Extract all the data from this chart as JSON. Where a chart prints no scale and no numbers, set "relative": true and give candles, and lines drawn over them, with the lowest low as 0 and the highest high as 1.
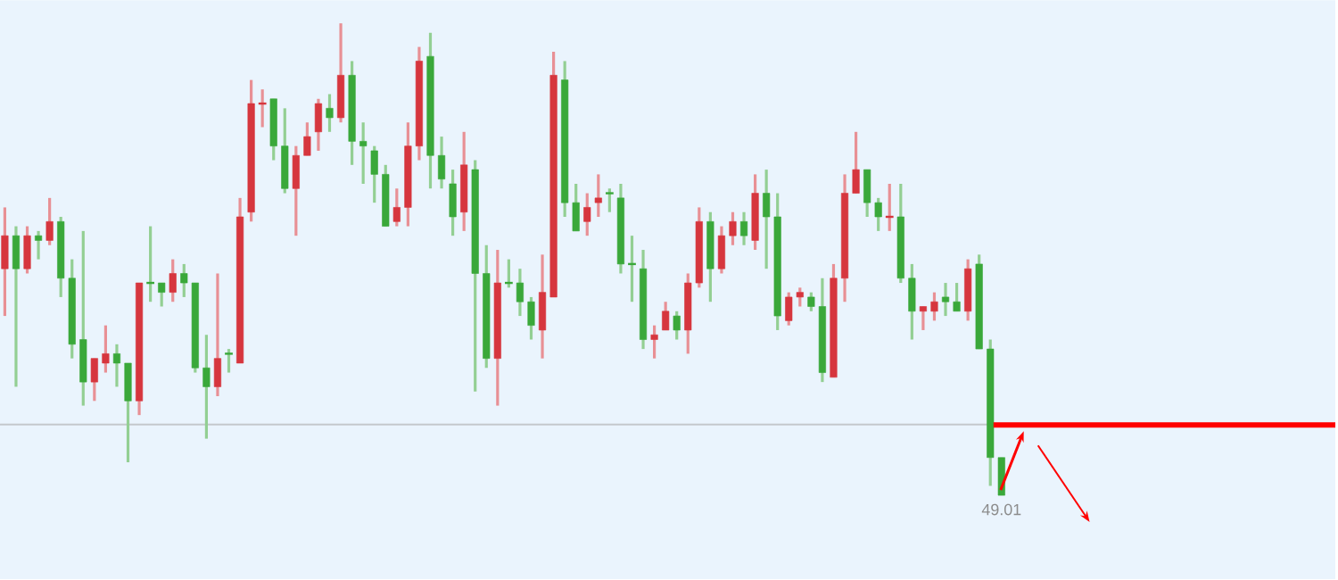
{
  "chart_data": {
    "type": "candlestick",
    "relative": true,
    "categories": [
      null,
      null,
      null,
      null,
      null,
      null,
      null,
      null,
      null,
      null,
      null,
      null,
      null,
      null,
      null,
      null,
      null,
      null,
      null,
      null,
      null,
      null,
      null,
      null,
      null,
      null,
      null,
      null,
      null,
      null,
      null,
      null,
      null,
      null,
      null,
      null,
      null,
      null,
      null,
      null,
      null,
      null,
      null,
      null,
      null,
      null,
      null,
      null,
      null,
      null,
      null,
      null,
      null,
      null,
      null,
      null,
      null,
      null,
      null,
      null,
      null,
      null,
      null,
      null,
      null,
      null,
      null,
      null,
      null,
      null,
      null,
      null,
      null,
      null,
      null,
      null,
      null,
      null,
      null,
      null,
      null,
      null,
      null,
      null,
      null,
      null,
      null,
      null,
      null,
      "49.01"
    ],
    "ohlc": [
      [
        0.48,
        0.61,
        0.38,
        0.55
      ],
      [
        0.55,
        0.57,
        0.23,
        0.48
      ],
      [
        0.48,
        0.57,
        0.47,
        0.55
      ],
      [
        0.55,
        0.56,
        0.5,
        0.54
      ],
      [
        0.54,
        0.63,
        0.53,
        0.58
      ],
      [
        0.58,
        0.59,
        0.42,
        0.46
      ],
      [
        0.46,
        0.5,
        0.29,
        0.32
      ],
      [
        0.33,
        0.56,
        0.19,
        0.24
      ],
      [
        0.24,
        0.29,
        0.2,
        0.29
      ],
      [
        0.28,
        0.36,
        0.26,
        0.3
      ],
      [
        0.3,
        0.32,
        0.23,
        0.28
      ],
      [
        0.28,
        0.28,
        0.07,
        0.2
      ],
      [
        0.2,
        0.45,
        0.17,
        0.45
      ],
      [
        0.45,
        0.57,
        0.41,
        0.45
      ],
      [
        0.45,
        0.45,
        0.4,
        0.43
      ],
      [
        0.43,
        0.5,
        0.41,
        0.47
      ],
      [
        0.47,
        0.49,
        0.42,
        0.45
      ],
      [
        0.45,
        0.45,
        0.26,
        0.27
      ],
      [
        0.27,
        0.34,
        0.12,
        0.23
      ],
      [
        0.23,
        0.47,
        0.21,
        0.29
      ],
      [
        0.3,
        0.31,
        0.26,
        0.3
      ],
      [
        0.28,
        0.63,
        0.28,
        0.59
      ],
      [
        0.6,
        0.88,
        0.58,
        0.83
      ],
      [
        0.83,
        0.86,
        0.78,
        0.83
      ],
      [
        0.84,
        0.84,
        0.71,
        0.74
      ],
      [
        0.74,
        0.82,
        0.64,
        0.65
      ],
      [
        0.65,
        0.74,
        0.55,
        0.72
      ],
      [
        0.72,
        0.79,
        0.72,
        0.76
      ],
      [
        0.77,
        0.84,
        0.73,
        0.83
      ],
      [
        0.82,
        0.85,
        0.77,
        0.8
      ],
      [
        0.8,
        1.0,
        0.79,
        0.89
      ],
      [
        0.89,
        0.92,
        0.7,
        0.75
      ],
      [
        0.75,
        0.79,
        0.66,
        0.74
      ],
      [
        0.73,
        0.74,
        0.62,
        0.68
      ],
      [
        0.68,
        0.7,
        0.57,
        0.57
      ],
      [
        0.58,
        0.65,
        0.57,
        0.61
      ],
      [
        0.61,
        0.79,
        0.57,
        0.74
      ],
      [
        0.74,
        0.95,
        0.71,
        0.92
      ],
      [
        0.93,
        0.98,
        0.65,
        0.72
      ],
      [
        0.72,
        0.76,
        0.65,
        0.67
      ],
      [
        0.66,
        0.69,
        0.55,
        0.59
      ],
      [
        0.6,
        0.77,
        0.56,
        0.7
      ],
      [
        0.69,
        0.71,
        0.22,
        0.47
      ],
      [
        0.47,
        0.53,
        0.27,
        0.29
      ],
      [
        0.29,
        0.52,
        0.19,
        0.45
      ],
      [
        0.45,
        0.5,
        0.44,
        0.45
      ],
      [
        0.45,
        0.48,
        0.38,
        0.41
      ],
      [
        0.41,
        0.42,
        0.33,
        0.36
      ],
      [
        0.35,
        0.51,
        0.29,
        0.43
      ],
      [
        0.42,
        0.94,
        0.42,
        0.89
      ],
      [
        0.88,
        0.92,
        0.59,
        0.62
      ],
      [
        0.62,
        0.66,
        0.56,
        0.56
      ],
      [
        0.58,
        0.64,
        0.55,
        0.61
      ],
      [
        0.62,
        0.68,
        0.59,
        0.63
      ],
      [
        0.64,
        0.65,
        0.6,
        0.64
      ],
      [
        0.63,
        0.66,
        0.47,
        0.49
      ],
      [
        0.49,
        0.55,
        0.41,
        0.49
      ],
      [
        0.48,
        0.52,
        0.31,
        0.33
      ],
      [
        0.33,
        0.36,
        0.29,
        0.34
      ],
      [
        0.35,
        0.41,
        0.35,
        0.39
      ],
      [
        0.38,
        0.39,
        0.33,
        0.35
      ],
      [
        0.35,
        0.47,
        0.3,
        0.45
      ],
      [
        0.45,
        0.61,
        0.44,
        0.58
      ],
      [
        0.58,
        0.6,
        0.41,
        0.48
      ],
      [
        0.48,
        0.57,
        0.47,
        0.55
      ],
      [
        0.55,
        0.6,
        0.53,
        0.58
      ],
      [
        0.58,
        0.6,
        0.53,
        0.55
      ],
      [
        0.54,
        0.68,
        0.52,
        0.64
      ],
      [
        0.64,
        0.69,
        0.48,
        0.59
      ],
      [
        0.59,
        0.64,
        0.35,
        0.38
      ],
      [
        0.37,
        0.43,
        0.36,
        0.42
      ],
      [
        0.42,
        0.44,
        0.4,
        0.43
      ],
      [
        0.42,
        0.43,
        0.39,
        0.4
      ],
      [
        0.4,
        0.46,
        0.24,
        0.26
      ],
      [
        0.25,
        0.49,
        0.25,
        0.46
      ],
      [
        0.46,
        0.68,
        0.41,
        0.64
      ],
      [
        0.64,
        0.77,
        0.64,
        0.69
      ],
      [
        0.69,
        0.69,
        0.59,
        0.62
      ],
      [
        0.62,
        0.63,
        0.56,
        0.59
      ],
      [
        0.59,
        0.66,
        0.56,
        0.59
      ],
      [
        0.59,
        0.66,
        0.45,
        0.46
      ],
      [
        0.46,
        0.49,
        0.33,
        0.39
      ],
      [
        0.39,
        0.4,
        0.35,
        0.4
      ],
      [
        0.39,
        0.43,
        0.37,
        0.41
      ],
      [
        0.42,
        0.45,
        0.38,
        0.41
      ],
      [
        0.41,
        0.45,
        0.39,
        0.39
      ],
      [
        0.39,
        0.5,
        0.37,
        0.48
      ],
      [
        0.49,
        0.51,
        0.31,
        0.31
      ],
      [
        0.31,
        0.33,
        0.02,
        0.08
      ],
      [
        0.08,
        0.08,
        0.0,
        0.0
      ]
    ],
    "colors": [
      "#d6363e",
      "#3aa83a",
      "#d6363e",
      "#3aa83a",
      "#d6363e",
      "#3aa83a",
      "#3aa83a",
      "#3aa83a",
      "#d6363e",
      "#d6363e",
      "#3aa83a",
      "#3aa83a",
      "#d6363e",
      "#3aa83a",
      "#3aa83a",
      "#d6363e",
      "#3aa83a",
      "#3aa83a",
      "#3aa83a",
      "#d6363e",
      "#3aa83a",
      "#d6363e",
      "#d6363e",
      "#d6363e",
      "#3aa83a",
      "#3aa83a",
      "#d6363e",
      "#d6363e",
      "#d6363e",
      "#3aa83a",
      "#d6363e",
      "#3aa83a",
      "#3aa83a",
      "#3aa83a",
      "#3aa83a",
      "#d6363e",
      "#d6363e",
      "#d6363e",
      "#3aa83a",
      "#3aa83a",
      "#3aa83a",
      "#d6363e",
      "#3aa83a",
      "#3aa83a",
      "#d6363e",
      "#3aa83a",
      "#3aa83a",
      "#3aa83a",
      "#d6363e",
      "#d6363e",
      "#3aa83a",
      "#3aa83a",
      "#d6363e",
      "#d6363e",
      "#3aa83a",
      "#3aa83a",
      "#3aa83a",
      "#3aa83a",
      "#d6363e",
      "#d6363e",
      "#3aa83a",
      "#d6363e",
      "#d6363e",
      "#3aa83a",
      "#d6363e",
      "#d6363e",
      "#3aa83a",
      "#d6363e",
      "#3aa83a",
      "#3aa83a",
      "#d6363e",
      "#d6363e",
      "#3aa83a",
      "#3aa83a",
      "#d6363e",
      "#d6363e",
      "#d6363e",
      "#3aa83a",
      "#3aa83a",
      "#d6363e",
      "#3aa83a",
      "#3aa83a",
      "#d6363e",
      "#d6363e",
      "#3aa83a",
      "#3aa83a",
      "#d6363e",
      "#3aa83a",
      "#3aa83a",
      "#3aa83a"
    ],
    "ref_lines": [
      {
        "axis": "y",
        "value": 0.15,
        "color": "#c4c8cc",
        "line_style": "solid"
      }
    ]
  }
}
